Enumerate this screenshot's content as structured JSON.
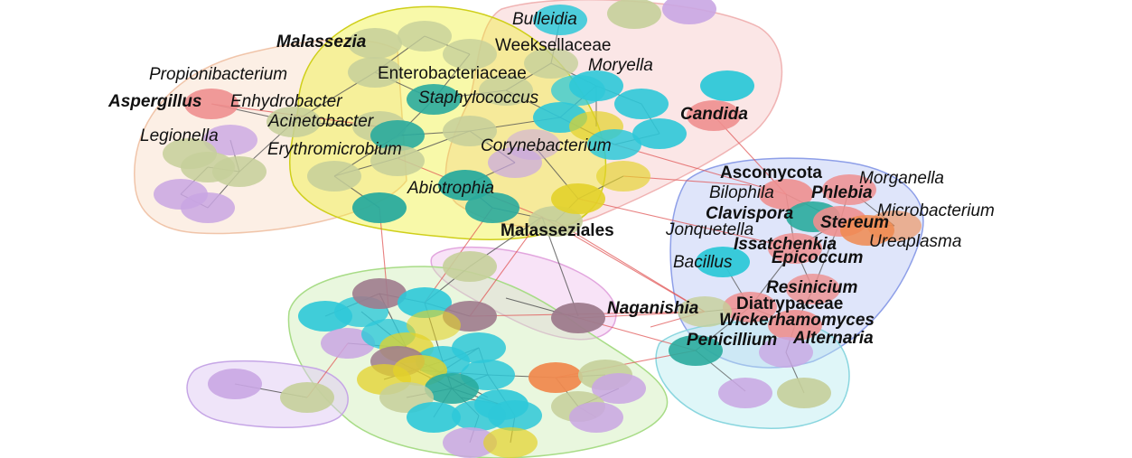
{
  "colors": {
    "cyan": "#2ec8d8",
    "olive": "#c5cf9a",
    "lavender": "#c9a6e3",
    "teal": "#2aab9d",
    "yellow": "#e3d22a",
    "pink": "#ee8f8f",
    "orange": "#f08a4f",
    "mauve": "#9e7b8d",
    "grey": "#cfc7b8",
    "edge_grey": "#555555",
    "edge_red": "#e05555"
  },
  "labels": [
    {
      "id": "bulleidia",
      "text": "Bulleidia",
      "style": "italic"
    },
    {
      "id": "malassezia",
      "text": "Malassezia",
      "style": "bold-italic"
    },
    {
      "id": "weeksellaceae",
      "text": "Weeksellaceae",
      "style": "normal"
    },
    {
      "id": "moryella",
      "text": "Moryella",
      "style": "italic"
    },
    {
      "id": "propionibacterium",
      "text": "Propionibacterium",
      "style": "italic"
    },
    {
      "id": "enterobacteriaceae",
      "text": "Enterobacteriaceae",
      "style": "normal"
    },
    {
      "id": "aspergillus",
      "text": "Aspergillus",
      "style": "bold-italic"
    },
    {
      "id": "enhydrobacter",
      "text": "Enhydrobacter",
      "style": "italic"
    },
    {
      "id": "staphylococcus",
      "text": "Staphylococcus",
      "style": "italic"
    },
    {
      "id": "acinetobacter",
      "text": "Acinetobacter",
      "style": "italic"
    },
    {
      "id": "candida",
      "text": "Candida",
      "style": "bold-italic"
    },
    {
      "id": "legionella",
      "text": "Legionella",
      "style": "italic"
    },
    {
      "id": "corynebacterium",
      "text": "Corynebacterium",
      "style": "italic"
    },
    {
      "id": "erythromicrobium",
      "text": "Erythromicrobium",
      "style": "italic"
    },
    {
      "id": "ascomycota",
      "text": "Ascomycota",
      "style": "bold"
    },
    {
      "id": "morganella",
      "text": "Morganella",
      "style": "italic"
    },
    {
      "id": "abiotrophia",
      "text": "Abiotrophia",
      "style": "italic"
    },
    {
      "id": "bilophila",
      "text": "Bilophila",
      "style": "italic"
    },
    {
      "id": "phlebia",
      "text": "Phlebia",
      "style": "bold-italic"
    },
    {
      "id": "clavispora",
      "text": "Clavispora",
      "style": "bold-italic"
    },
    {
      "id": "microbacterium",
      "text": "Microbacterium",
      "style": "italic"
    },
    {
      "id": "stereum",
      "text": "Stereum",
      "style": "bold-italic"
    },
    {
      "id": "malasseziales",
      "text": "Malasseziales",
      "style": "bold"
    },
    {
      "id": "jonquetella",
      "text": "Jonquetella",
      "style": "italic"
    },
    {
      "id": "issatchenkia",
      "text": "Issatchenkia",
      "style": "bold-italic"
    },
    {
      "id": "ureaplasma",
      "text": "Ureaplasma",
      "style": "italic"
    },
    {
      "id": "epicoccum",
      "text": "Epicoccum",
      "style": "bold-italic"
    },
    {
      "id": "bacillus",
      "text": "Bacillus",
      "style": "italic"
    },
    {
      "id": "resinicium",
      "text": "Resinicium",
      "style": "bold-italic"
    },
    {
      "id": "naganishia",
      "text": "Naganishia",
      "style": "bold-italic"
    },
    {
      "id": "diatrypaceae",
      "text": "Diatrypaceae",
      "style": "bold"
    },
    {
      "id": "wickerhamomyces",
      "text": "Wickerhamomyces",
      "style": "bold-italic"
    },
    {
      "id": "penicillium",
      "text": "Penicillium",
      "style": "bold-italic"
    },
    {
      "id": "alternaria",
      "text": "Alternaria",
      "style": "bold-italic"
    }
  ]
}
